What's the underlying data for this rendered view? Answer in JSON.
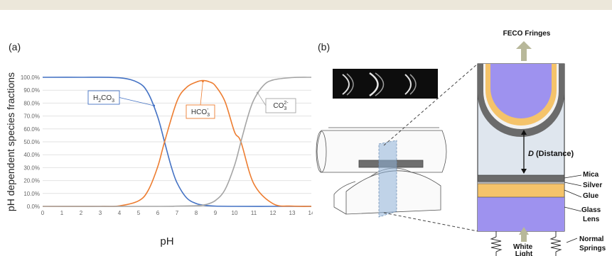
{
  "panel_a_label": "(a)",
  "panel_b_label": "(b)",
  "chart_data": {
    "type": "line",
    "title": "",
    "xlabel": "pH",
    "ylabel": "pH dependent species fractions",
    "xlim": [
      0,
      14
    ],
    "ylim": [
      0,
      100
    ],
    "x_ticks": [
      "0",
      "1",
      "2",
      "3",
      "4",
      "5",
      "6",
      "7",
      "8",
      "9",
      "10",
      "11",
      "12",
      "13",
      "14"
    ],
    "y_ticks": [
      "0.0%",
      "10.0%",
      "20.0%",
      "30.0%",
      "40.0%",
      "50.0%",
      "60.0%",
      "70.0%",
      "80.0%",
      "90.0%",
      "100.0%"
    ],
    "grid": "horizontal",
    "pKa1": 6.35,
    "pKa2": 10.33,
    "series": [
      {
        "name": "H2CO3",
        "label_main": "H",
        "label_sub1": "2",
        "label_mid": "CO",
        "label_sub2": "3",
        "label_sup": "",
        "color": "#4472c4",
        "x": [
          0,
          2,
          4,
          5,
          5.5,
          6,
          6.35,
          6.7,
          7,
          7.5,
          8,
          8.5,
          9,
          10,
          12,
          14
        ],
        "values": [
          100,
          100,
          99.6,
          95.7,
          87.6,
          69.1,
          50,
          30.9,
          18.3,
          6.6,
          2.2,
          0.7,
          0.2,
          0,
          0,
          0
        ]
      },
      {
        "name": "HCO3-",
        "label_main": "HCO",
        "label_sub1": "3",
        "label_mid": "",
        "label_sub2": "",
        "label_sup": "-",
        "color": "#ed7d31",
        "x": [
          0,
          3,
          4,
          5,
          5.5,
          6,
          6.35,
          7,
          7.5,
          8,
          8.35,
          8.7,
          9,
          9.5,
          10,
          10.33,
          11,
          12,
          13,
          14
        ],
        "values": [
          0,
          0,
          0.4,
          4.3,
          12.4,
          30.9,
          49.9,
          81.5,
          92.2,
          96.3,
          97.5,
          96.4,
          93.4,
          81.3,
          57.6,
          50.0,
          17.6,
          2.1,
          0.2,
          0
        ]
      },
      {
        "name": "CO32-",
        "label_main": "CO",
        "label_sub1": "3",
        "label_mid": "",
        "label_sub2": "",
        "label_sup": "2-",
        "color": "#a5a5a5",
        "x": [
          0,
          6,
          7,
          8,
          8.5,
          9,
          9.5,
          10,
          10.33,
          10.7,
          11,
          11.5,
          12,
          13,
          14
        ],
        "values": [
          0,
          0,
          0.2,
          0.5,
          1.4,
          4.5,
          12.9,
          31.8,
          50,
          69.9,
          82.4,
          93.6,
          97.9,
          99.8,
          100
        ]
      }
    ]
  },
  "diagram": {
    "top_label": "FECO Fringes",
    "distance_italic": "D",
    "distance_text": " (Distance)",
    "layer_labels": [
      "Mica",
      "Silver",
      "Glue",
      "Glass",
      "Lens"
    ],
    "springs_label": [
      "Normal",
      "Springs"
    ],
    "light_label": [
      "White",
      "Light"
    ],
    "colors": {
      "lens": "#9e92ef",
      "glue": "#f5c36a",
      "mica": "#6b6b6b",
      "silver": "#b0b0b0",
      "gap": "#dfe6ee",
      "arrow": "#b8b89a"
    }
  }
}
